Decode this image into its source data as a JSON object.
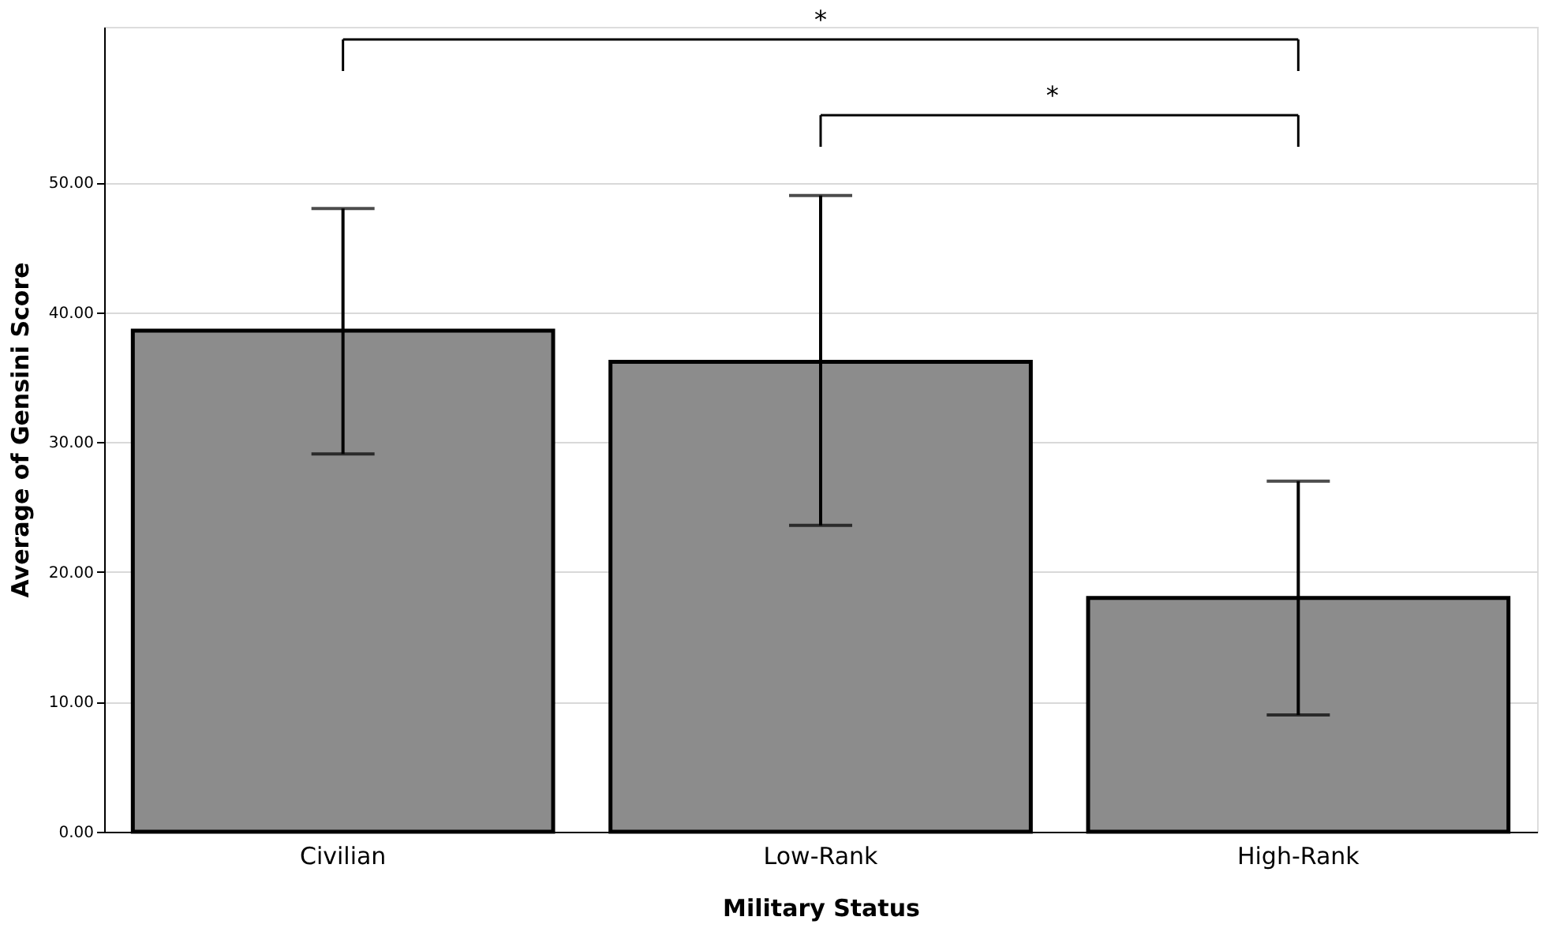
{
  "chart_data": {
    "type": "bar",
    "xlabel": "Military Status",
    "ylabel": "Average of Gensini Score",
    "categories": [
      "Civilian",
      "Low-Rank",
      "High-Rank"
    ],
    "values": [
      38.6,
      36.2,
      18.0
    ],
    "color": "#8c8c8c",
    "errors": [
      [
        29.1,
        48.0
      ],
      [
        23.6,
        49.0
      ],
      [
        9.0,
        27.0
      ]
    ],
    "ylim": [
      0,
      62
    ],
    "yticks": [
      {
        "value": 0,
        "label": "0.00"
      },
      {
        "value": 10,
        "label": "10.00"
      },
      {
        "value": 20,
        "label": "20.00"
      },
      {
        "value": 30,
        "label": "30.00"
      },
      {
        "value": 40,
        "label": "40.00"
      },
      {
        "value": 50,
        "label": "50.00"
      }
    ],
    "grid": "y",
    "annotations": [
      "*",
      "*"
    ]
  }
}
